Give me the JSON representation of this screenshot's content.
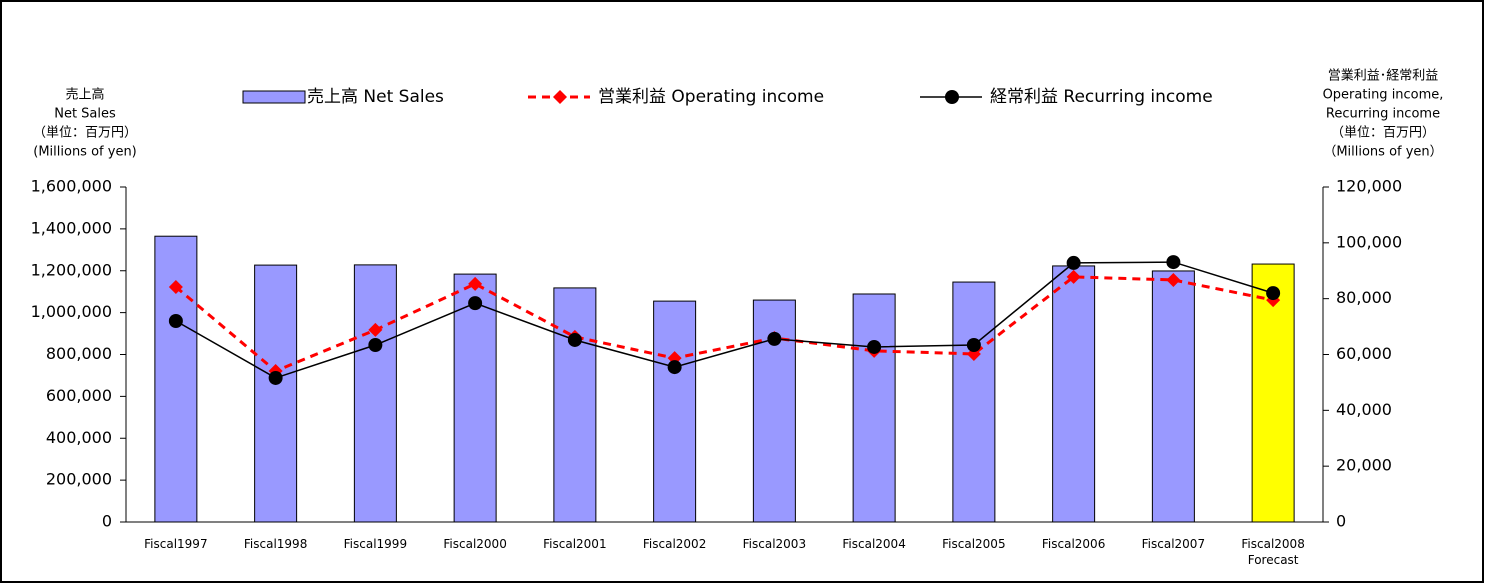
{
  "chart_data": {
    "type": "bar_line",
    "categories": [
      "Fiscal1997",
      "Fiscal1998",
      "Fiscal1999",
      "Fiscal2000",
      "Fiscal2001",
      "Fiscal2002",
      "Fiscal2003",
      "Fiscal2004",
      "Fiscal2005",
      "Fiscal2006",
      "Fiscal2007",
      "Fiscal2008\nForecast"
    ],
    "y_label": [
      "売上高",
      "Net Sales",
      "（単位：百万円）",
      "(Millions of yen)"
    ],
    "y2_label": [
      "営業利益･経常利益",
      "Operating income,",
      "Recurring income",
      "（単位：百万円）",
      "（Millions of yen）"
    ],
    "ylim": [
      0,
      1600000
    ],
    "yticks": [
      0,
      {
        "value": 200000,
        "label": "200,000"
      },
      {
        "value": 400000,
        "label": "400,000"
      },
      {
        "value": 600000,
        "label": "600,000"
      },
      {
        "value": 800000,
        "label": "800,000"
      },
      {
        "value": 1000000,
        "label": "1,000,000"
      },
      {
        "value": 1200000,
        "label": "1,200,000"
      },
      {
        "value": 1400000,
        "label": "1,400,000"
      },
      {
        "value": 1600000,
        "label": "1,600,000"
      }
    ],
    "y2lim": [
      0,
      120000
    ],
    "y2ticks": [
      0,
      {
        "value": 20000,
        "label": "20,000"
      },
      {
        "value": 40000,
        "label": "40,000"
      },
      {
        "value": 60000,
        "label": "60,000"
      },
      {
        "value": 80000,
        "label": "80,000"
      },
      {
        "value": 100000,
        "label": "100,000"
      },
      {
        "value": 120000,
        "label": "120,000"
      }
    ],
    "series": [
      {
        "name": "売上高 Net Sales",
        "type": "bar",
        "color": "#9999ff",
        "colors": [
          "#9999ff",
          "#9999ff",
          "#9999ff",
          "#9999ff",
          "#9999ff",
          "#9999ff",
          "#9999ff",
          "#9999ff",
          "#9999ff",
          "#9999ff",
          "#9999ff",
          "#ffff00"
        ],
        "values": [
          1365000,
          1227000,
          1228000,
          1184000,
          1118000,
          1055000,
          1060000,
          1089000,
          1146000,
          1223000,
          1199000,
          1232000
        ]
      },
      {
        "name": "営業利益 Operating income",
        "type": "line",
        "axis": "y2",
        "color": "#ff0000",
        "dashed": true,
        "marker": "diamond",
        "values": [
          84200,
          54100,
          68800,
          85300,
          66300,
          58700,
          65900,
          61300,
          60200,
          87800,
          86700,
          79500
        ]
      },
      {
        "name": "経常利益 Recurring income",
        "type": "line",
        "axis": "y2",
        "color": "#000000",
        "dashed": false,
        "marker": "circle",
        "values": [
          72000,
          51600,
          63400,
          78400,
          65200,
          55500,
          65600,
          62700,
          63400,
          92800,
          93100,
          82000
        ]
      }
    ]
  }
}
